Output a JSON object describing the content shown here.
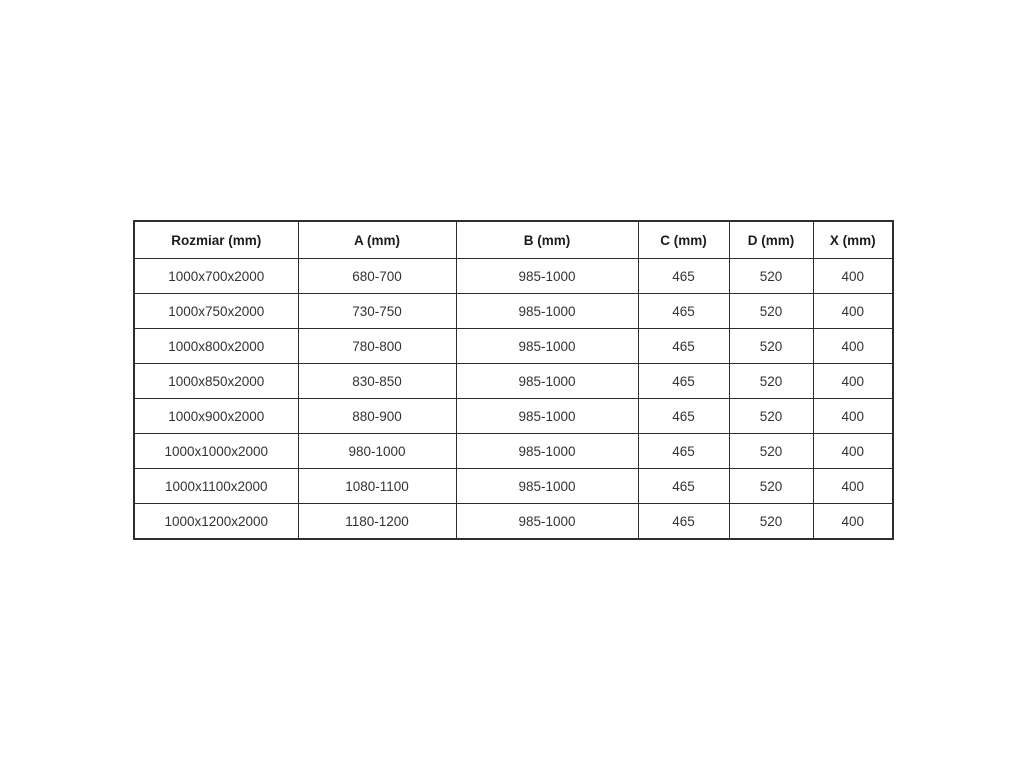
{
  "colors": {
    "background": "#ffffff",
    "border": "#2d2d2d",
    "header_text": "#1c1c1c",
    "cell_text": "#333333"
  },
  "table": {
    "columns": [
      {
        "label": "Rozmiar (mm)"
      },
      {
        "label": "A (mm)"
      },
      {
        "label": "B (mm)"
      },
      {
        "label": "C (mm)"
      },
      {
        "label": "D (mm)"
      },
      {
        "label": "X (mm)"
      }
    ],
    "rows": [
      {
        "cells": [
          "1000x700x2000",
          "680-700",
          "985-1000",
          "465",
          "520",
          "400"
        ]
      },
      {
        "cells": [
          "1000x750x2000",
          "730-750",
          "985-1000",
          "465",
          "520",
          "400"
        ]
      },
      {
        "cells": [
          "1000x800x2000",
          "780-800",
          "985-1000",
          "465",
          "520",
          "400"
        ]
      },
      {
        "cells": [
          "1000x850x2000",
          "830-850",
          "985-1000",
          "465",
          "520",
          "400"
        ]
      },
      {
        "cells": [
          "1000x900x2000",
          "880-900",
          "985-1000",
          "465",
          "520",
          "400"
        ]
      },
      {
        "cells": [
          "1000x1000x2000",
          "980-1000",
          "985-1000",
          "465",
          "520",
          "400"
        ]
      },
      {
        "cells": [
          "1000x1100x2000",
          "1080-1100",
          "985-1000",
          "465",
          "520",
          "400"
        ]
      },
      {
        "cells": [
          "1000x1200x2000",
          "1180-1200",
          "985-1000",
          "465",
          "520",
          "400"
        ]
      }
    ]
  }
}
